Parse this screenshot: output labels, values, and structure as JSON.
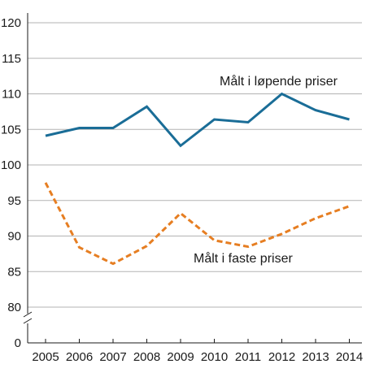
{
  "chart_data": {
    "type": "line",
    "x": [
      "2005",
      "2006",
      "2007",
      "2008",
      "2009",
      "2010",
      "2011",
      "2012",
      "2013",
      "2014"
    ],
    "series": [
      {
        "name": "Målt i løpende priser",
        "values": [
          104.1,
          105.2,
          105.2,
          108.2,
          102.7,
          106.4,
          106.0,
          110.0,
          107.7,
          106.4
        ],
        "color": "#1a6d97",
        "style": "solid"
      },
      {
        "name": "Målt i faste priser",
        "values": [
          97.5,
          88.4,
          86.1,
          88.6,
          93.2,
          89.4,
          88.5,
          90.3,
          92.5,
          94.2
        ],
        "color": "#e67e22",
        "style": "dashed"
      }
    ],
    "y_ticks": [
      "0",
      "80",
      "85",
      "90",
      "95",
      "100",
      "105",
      "110",
      "115",
      "120"
    ],
    "ylim": [
      80,
      120
    ],
    "y_axis_break": true,
    "grid": "horizontal",
    "legend": "inline labels"
  }
}
